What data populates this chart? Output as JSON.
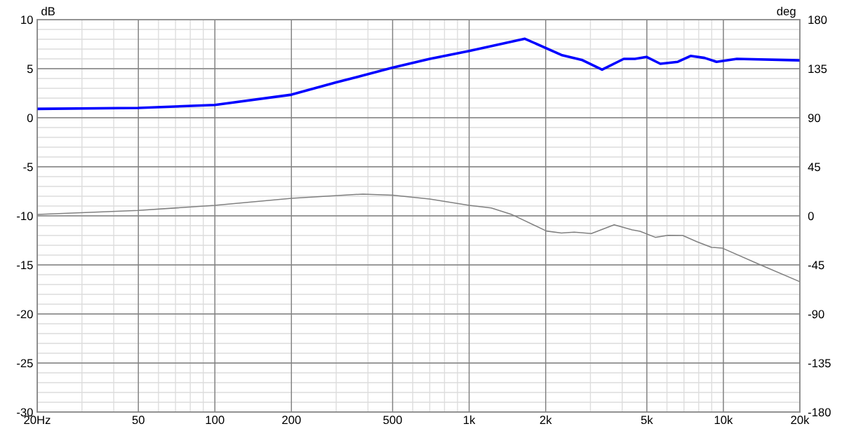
{
  "chart_data": {
    "type": "line",
    "ylabel": "dB",
    "y2label": "deg",
    "log": "x",
    "grid": true,
    "marker": "none",
    "line_style": "solid",
    "xlim": [
      20,
      20000
    ],
    "xticks": [
      {
        "value": 20,
        "label": "20Hz"
      },
      50,
      100,
      200,
      500,
      {
        "value": 1000,
        "label": "1k"
      },
      {
        "value": 2000,
        "label": "2k"
      },
      {
        "value": 5000,
        "label": "5k"
      },
      {
        "value": 10000,
        "label": "10k"
      },
      {
        "value": 20000,
        "label": "20k"
      }
    ],
    "ylim": [
      -30,
      10
    ],
    "yticks": [
      -30,
      -25,
      -20,
      -15,
      -10,
      -5,
      0,
      5,
      10
    ],
    "y2lim": [
      -180,
      180
    ],
    "y2ticks": [
      -180,
      -135,
      -90,
      -45,
      0,
      45,
      90,
      135,
      180
    ],
    "series": [
      {
        "color": "#0000ff",
        "x": [
          20,
          50,
          100,
          200,
          300,
          500,
          700,
          1000,
          1657,
          2306,
          2773,
          3334,
          4057,
          4490,
          4980,
          5650,
          6620,
          7430,
          8430,
          9400,
          11300,
          20000
        ],
        "values": [
          0.9,
          1.0,
          1.3,
          2.35,
          3.6,
          5.1,
          6.0,
          6.8,
          8.05,
          6.4,
          5.9,
          4.9,
          6.0,
          6.0,
          6.2,
          5.5,
          5.7,
          6.3,
          6.1,
          5.7,
          6.0,
          5.85
        ]
      },
      {
        "color": "#808080",
        "axis": "y2",
        "x": [
          20,
          50,
          100,
          200,
          382,
          500,
          700,
          1000,
          1222,
          1462,
          2013,
          2306,
          2590,
          3025,
          3720,
          4380,
          4700,
          5400,
          6060,
          6920,
          7880,
          8990,
          9880,
          14000,
          20000
        ],
        "values": [
          1.3,
          5,
          9.6,
          16,
          20,
          19,
          15.4,
          9.7,
          7.2,
          1.5,
          -13.9,
          -15.8,
          -15,
          -16.2,
          -8.2,
          -12.8,
          -14.1,
          -19.7,
          -17.8,
          -18,
          -23.8,
          -28.9,
          -29.5,
          -45,
          -60.4
        ]
      }
    ]
  }
}
